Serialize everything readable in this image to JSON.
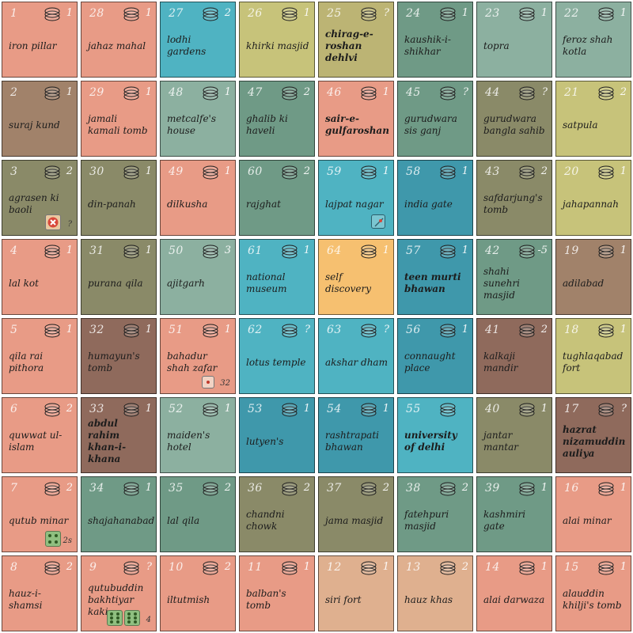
{
  "colors": {
    "salmon": "#e89b86",
    "olive_dark": "#8f8f6e",
    "brown": "#a1826a",
    "teal_gray": "#8cb0a0",
    "sage": "#6f9a86",
    "teal": "#4fb3c2",
    "teal_deep": "#3f98ab",
    "khaki": "#bcb474",
    "yellow_green": "#c7c37a",
    "orange": "#f6c070",
    "maroon": "#8f6a5c",
    "peach": "#dfb08f"
  },
  "tiles": [
    {
      "num": "1",
      "name": "iron pillar",
      "count": "1",
      "color": "#e89b86"
    },
    {
      "num": "28",
      "name": "jahaz mahal",
      "count": "1",
      "color": "#e89b86"
    },
    {
      "num": "27",
      "name": "lodhi gardens",
      "count": "2",
      "color": "#4fb3c2"
    },
    {
      "num": "26",
      "name": "khirki masjid",
      "count": "1",
      "color": "#c7c37a"
    },
    {
      "num": "25",
      "name": "chirag-e-roshan dehlvi",
      "count": "?",
      "color": "#bcb474",
      "strong": true
    },
    {
      "num": "24",
      "name": "kaushik-i-shikhar",
      "count": "1",
      "color": "#6f9a86"
    },
    {
      "num": "23",
      "name": "topra",
      "count": "1",
      "color": "#8cb0a0"
    },
    {
      "num": "22",
      "name": "feroz shah kotla",
      "count": "1",
      "color": "#8cb0a0"
    },
    {
      "num": "2",
      "name": "suraj kund",
      "count": "1",
      "color": "#a1826a"
    },
    {
      "num": "29",
      "name": "jamali kamali tomb",
      "count": "1",
      "color": "#e89b86"
    },
    {
      "num": "48",
      "name": "metcalfe's house",
      "count": "1",
      "color": "#8cb0a0"
    },
    {
      "num": "47",
      "name": "ghalib ki haveli",
      "count": "2",
      "color": "#6f9a86"
    },
    {
      "num": "46",
      "name": "sair-e-gulfaroshan",
      "count": "1",
      "color": "#e89b86",
      "strong": true
    },
    {
      "num": "45",
      "name": "gurudwara sis ganj",
      "count": "?",
      "color": "#6f9a86"
    },
    {
      "num": "44",
      "name": "gurudwara bangla sahib",
      "count": "?",
      "color": "#8a8a68"
    },
    {
      "num": "21",
      "name": "satpula",
      "count": "2",
      "color": "#c7c37a"
    },
    {
      "num": "3",
      "name": "agrasen ki baoli",
      "count": "2",
      "color": "#8a8a68"
    },
    {
      "num": "30",
      "name": "din-panah",
      "count": "1",
      "color": "#8a8a68"
    },
    {
      "num": "49",
      "name": "dilkusha",
      "count": "1",
      "color": "#e89b86"
    },
    {
      "num": "60",
      "name": "rajghat",
      "count": "2",
      "color": "#6f9a86"
    },
    {
      "num": "59",
      "name": "lajpat nagar",
      "count": "1",
      "color": "#4fb3c2"
    },
    {
      "num": "58",
      "name": "india gate",
      "count": "1",
      "color": "#3f98ab"
    },
    {
      "num": "43",
      "name": "safdarjung's tomb",
      "count": "2",
      "color": "#8a8a68"
    },
    {
      "num": "20",
      "name": "jahapannah",
      "count": "1",
      "color": "#c7c37a"
    },
    {
      "num": "4",
      "name": "lal kot",
      "count": "1",
      "color": "#e89b86"
    },
    {
      "num": "31",
      "name": "purana qila",
      "count": "1",
      "color": "#8a8a68"
    },
    {
      "num": "50",
      "name": "ajitgarh",
      "count": "3",
      "color": "#8cb0a0"
    },
    {
      "num": "61",
      "name": "national museum",
      "count": "1",
      "color": "#4fb3c2"
    },
    {
      "num": "64",
      "name": "self discovery",
      "count": "1",
      "color": "#f6c070"
    },
    {
      "num": "57",
      "name": "teen murti bhawan",
      "count": "1",
      "color": "#3f98ab",
      "strong": true
    },
    {
      "num": "42",
      "name": "shahi sunehri masjid",
      "count": "-5",
      "color": "#6f9a86"
    },
    {
      "num": "19",
      "name": "adilabad",
      "count": "1",
      "color": "#a1826a"
    },
    {
      "num": "5",
      "name": "qila rai pithora",
      "count": "1",
      "color": "#e89b86"
    },
    {
      "num": "32",
      "name": "humayun's tomb",
      "count": "1",
      "color": "#8f6a5c"
    },
    {
      "num": "51",
      "name": "bahadur shah zafar",
      "count": "1",
      "color": "#e89b86"
    },
    {
      "num": "62",
      "name": "lotus temple",
      "count": "?",
      "color": "#4fb3c2"
    },
    {
      "num": "63",
      "name": "akshar dham",
      "count": "?",
      "color": "#4fb3c2"
    },
    {
      "num": "56",
      "name": "connaught place",
      "count": "1",
      "color": "#3f98ab"
    },
    {
      "num": "41",
      "name": "kalkaji mandir",
      "count": "2",
      "color": "#8f6a5c"
    },
    {
      "num": "18",
      "name": "tughlaqabad fort",
      "count": "1",
      "color": "#c7c37a"
    },
    {
      "num": "6",
      "name": "quwwat ul-islam",
      "count": "2",
      "color": "#e89b86"
    },
    {
      "num": "33",
      "name": "abdul rahim khan-i-khana",
      "count": "1",
      "color": "#8f6a5c",
      "strong": true
    },
    {
      "num": "52",
      "name": "maiden's hotel",
      "count": "1",
      "color": "#8cb0a0"
    },
    {
      "num": "53",
      "name": "lutyen's",
      "count": "1",
      "color": "#3f98ab"
    },
    {
      "num": "54",
      "name": "rashtrapati bhawan",
      "count": "1",
      "color": "#3f98ab"
    },
    {
      "num": "55",
      "name": "university of delhi",
      "count": "",
      "color": "#4fb3c2",
      "strong": true
    },
    {
      "num": "40",
      "name": "jantar mantar",
      "count": "1",
      "color": "#8a8a68"
    },
    {
      "num": "17",
      "name": "hazrat nizamuddin auliya",
      "count": "?",
      "color": "#8f6a5c",
      "strong": true
    },
    {
      "num": "7",
      "name": "qutub minar",
      "count": "2",
      "color": "#e89b86"
    },
    {
      "num": "34",
      "name": "shajahanabad",
      "count": "1",
      "color": "#6f9a86"
    },
    {
      "num": "35",
      "name": "lal qila",
      "count": "2",
      "color": "#6f9a86"
    },
    {
      "num": "36",
      "name": "chandni chowk",
      "count": "2",
      "color": "#8a8a68"
    },
    {
      "num": "37",
      "name": "jama masjid",
      "count": "2",
      "color": "#8a8a68"
    },
    {
      "num": "38",
      "name": "fatehpuri masjid",
      "count": "2",
      "color": "#6f9a86"
    },
    {
      "num": "39",
      "name": "kashmiri gate",
      "count": "1",
      "color": "#6f9a86"
    },
    {
      "num": "16",
      "name": "alai minar",
      "count": "1",
      "color": "#e89b86"
    },
    {
      "num": "8",
      "name": "hauz-i-shamsi",
      "count": "2",
      "color": "#e89b86"
    },
    {
      "num": "9",
      "name": "qutubuddin bakhtiyar kaki",
      "count": "?",
      "color": "#e89b86"
    },
    {
      "num": "10",
      "name": "iltutmish",
      "count": "2",
      "color": "#e89b86"
    },
    {
      "num": "11",
      "name": "balban's tomb",
      "count": "1",
      "color": "#e89b86"
    },
    {
      "num": "12",
      "name": "siri fort",
      "count": "1",
      "color": "#dfb08f"
    },
    {
      "num": "13",
      "name": "hauz khas",
      "count": "2",
      "color": "#dfb08f"
    },
    {
      "num": "14",
      "name": "alai darwaza",
      "count": "1",
      "color": "#e89b86"
    },
    {
      "num": "15",
      "name": "alauddin khilji's tomb",
      "count": "1",
      "color": "#e89b86"
    }
  ],
  "markers": {
    "baoli_reject": {
      "label": "?"
    },
    "bahadur_dot": {
      "label": "32"
    },
    "qutub_die": {
      "label": "2s"
    },
    "kaki_dice": {
      "label": "4"
    }
  }
}
